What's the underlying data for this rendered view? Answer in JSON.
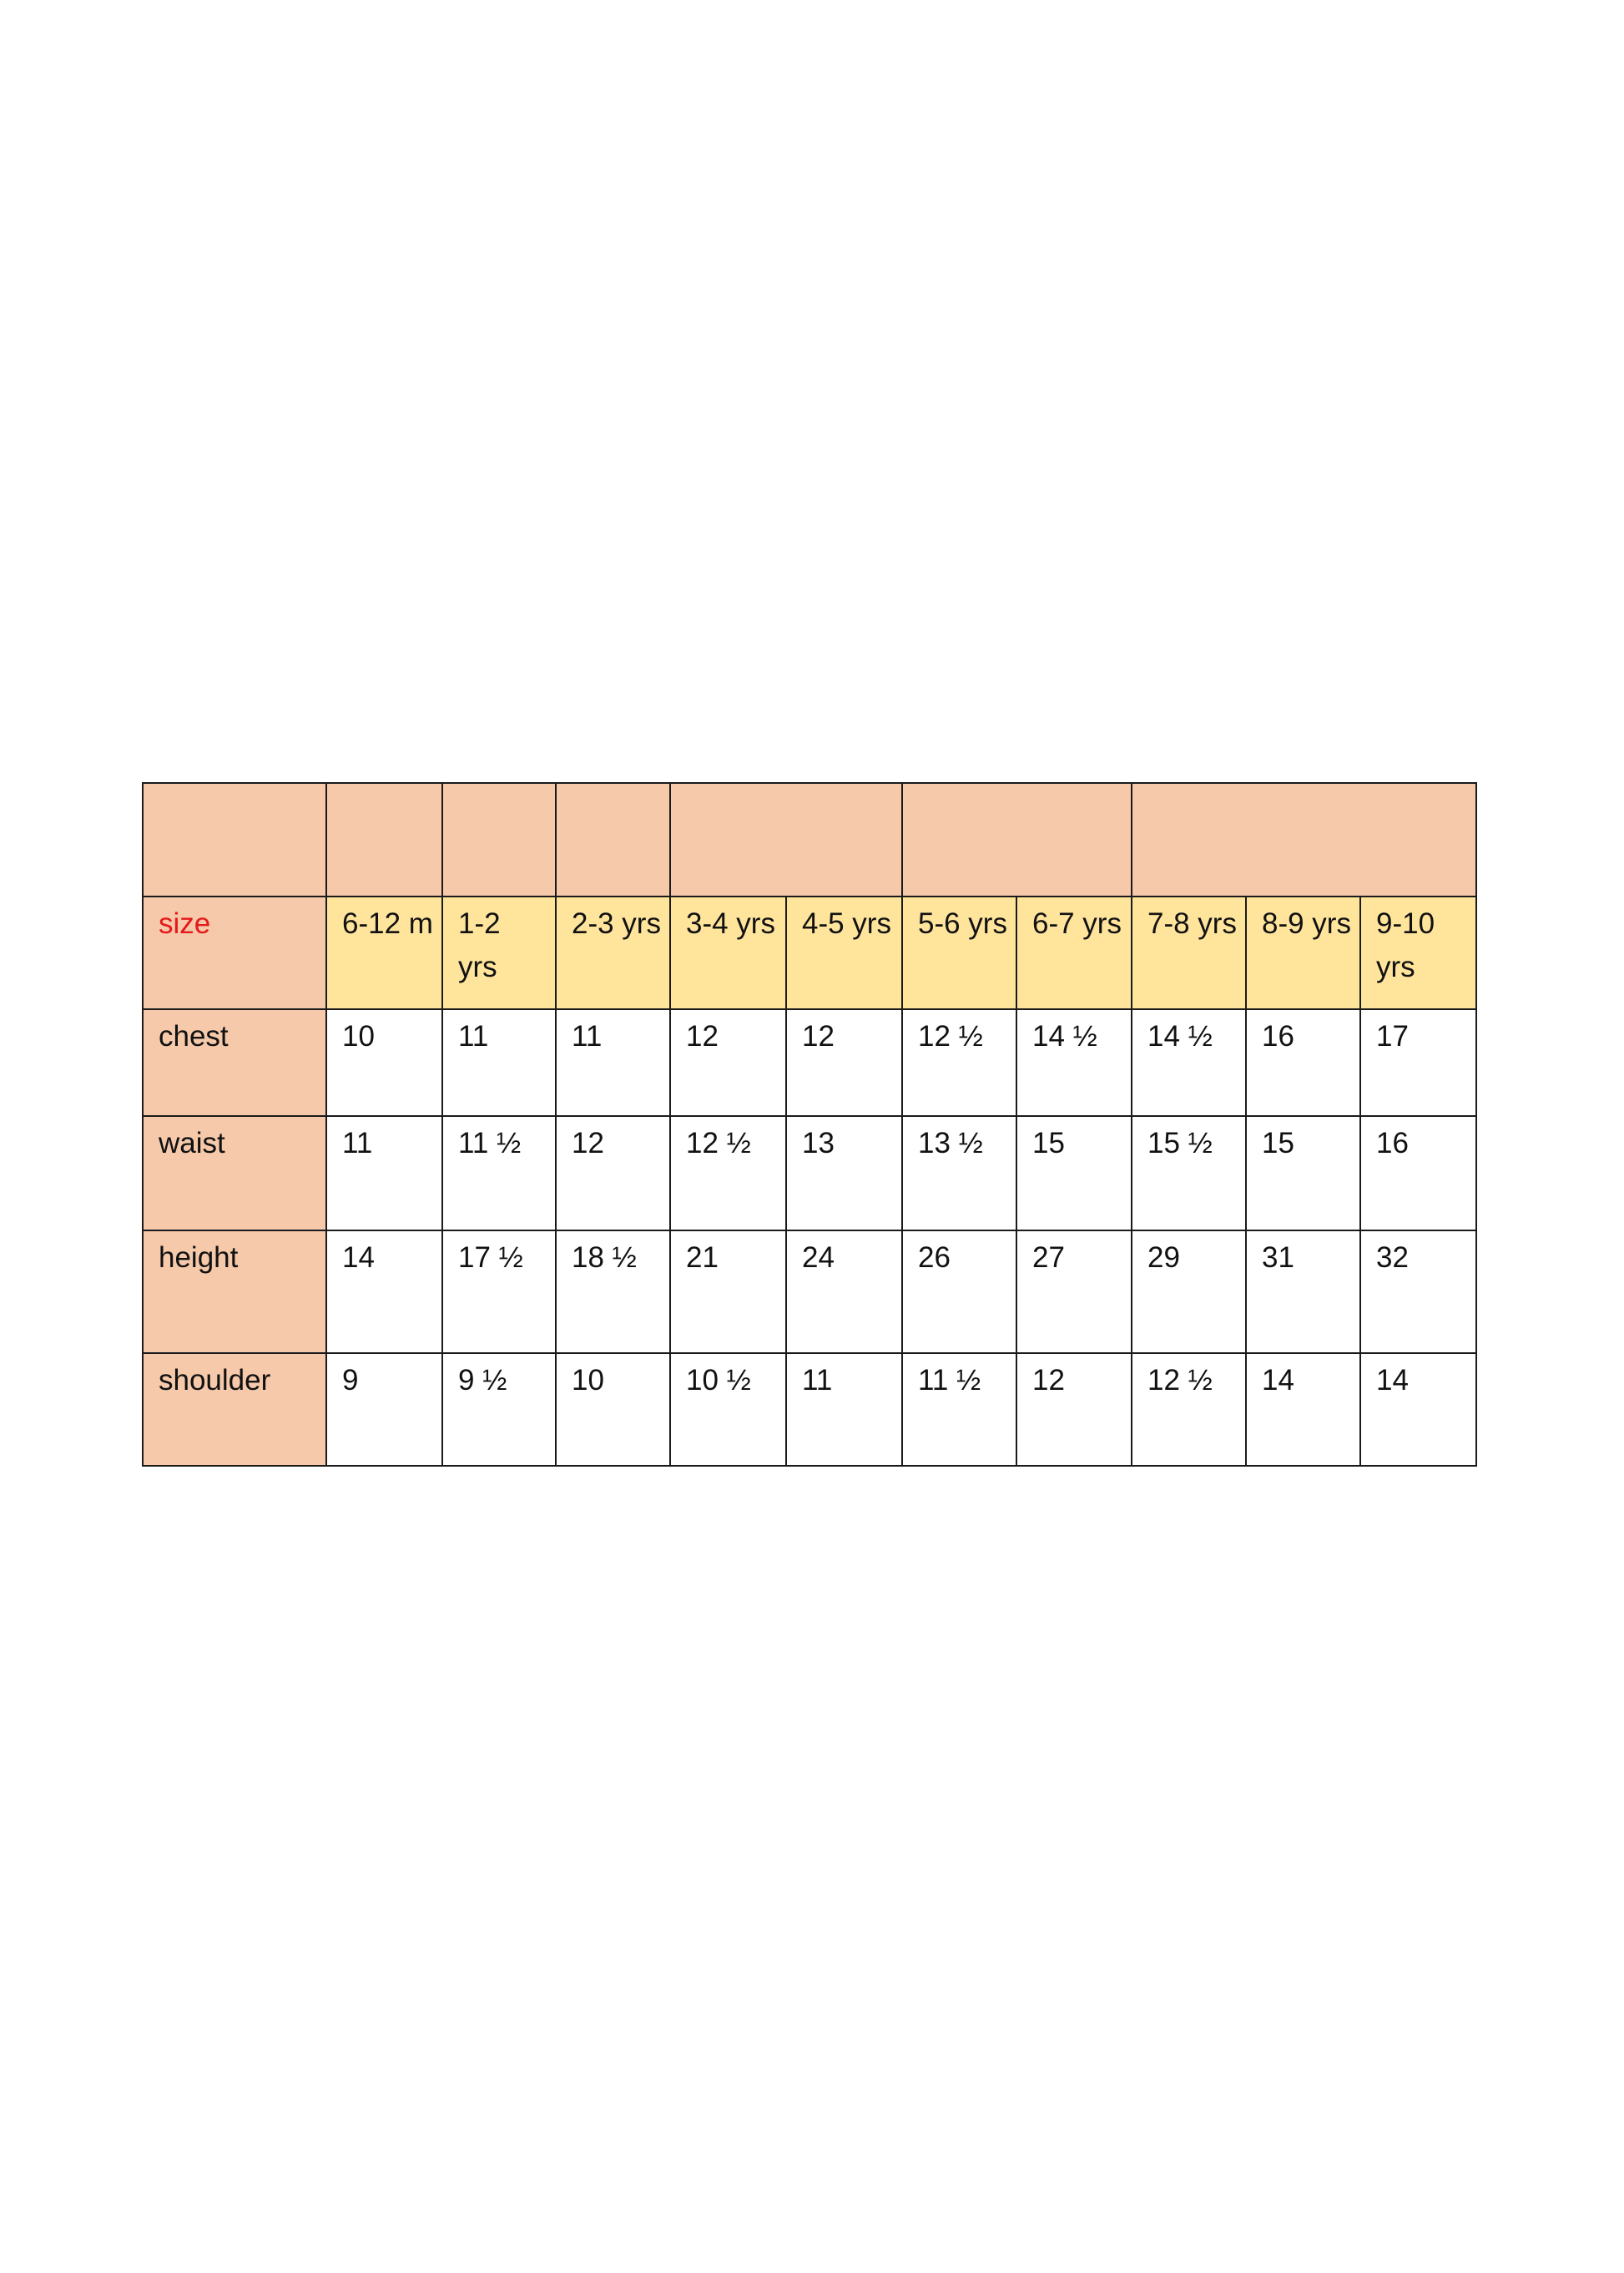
{
  "table": {
    "size_label": "size",
    "sizes": [
      "6-12 m",
      "1-2 yrs",
      "2-3 yrs",
      "3-4 yrs",
      "4-5 yrs",
      "5-6 yrs",
      "6-7 yrs",
      "7-8 yrs",
      "8-9 yrs",
      "9-10 yrs"
    ],
    "rows": [
      {
        "label": "chest",
        "values": [
          "10",
          "11",
          "11",
          "12",
          "12",
          "12 ½",
          "14 ½",
          "14 ½",
          "16",
          "17"
        ]
      },
      {
        "label": "waist",
        "values": [
          "11",
          "11 ½",
          "12",
          "12 ½",
          "13",
          "13 ½",
          "15",
          "15 ½",
          "15",
          "16"
        ]
      },
      {
        "label": "height",
        "values": [
          "14",
          "17 ½",
          "18 ½",
          "21",
          "24",
          "26",
          "27",
          "29",
          "31",
          "32"
        ]
      },
      {
        "label": "shoulder",
        "values": [
          "9",
          "9 ½",
          "10",
          "10 ½",
          "11",
          "11 ½",
          "12",
          "12 ½",
          "14",
          "14"
        ]
      }
    ]
  },
  "colors": {
    "header_fill": "#f5c9aa",
    "size_row_fill": "#ffe49c",
    "size_label_color": "#e41a1a"
  }
}
